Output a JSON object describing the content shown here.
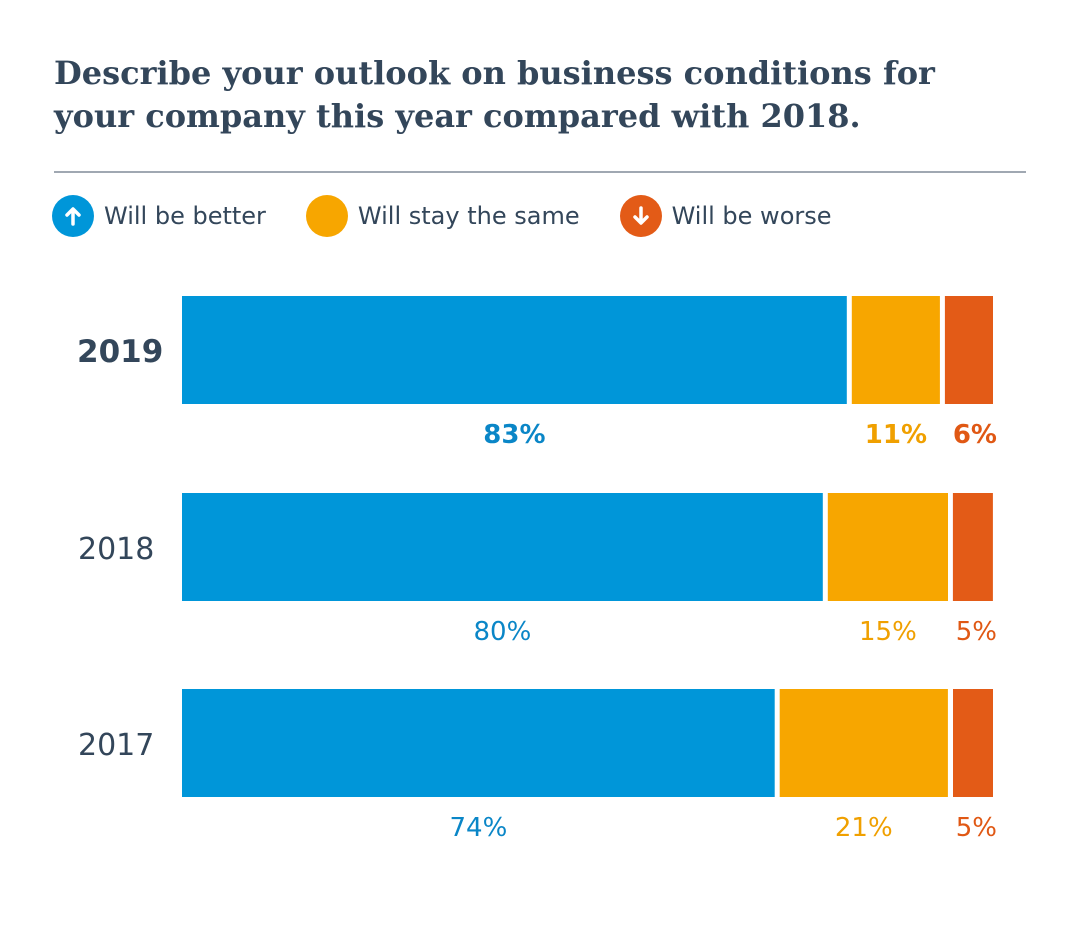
{
  "chart_data": {
    "type": "bar",
    "orientation": "horizontal-stacked",
    "title": "Describe your outlook on business conditions for your company this year compared with 2018.",
    "categories": [
      "2019",
      "2018",
      "2017"
    ],
    "series": [
      {
        "name": "Will be better",
        "color": "#0096d9",
        "label_color": "#0a86c7",
        "icon": "arrow-up-icon",
        "values": [
          83,
          80,
          74
        ],
        "labels": [
          "83%",
          "80%",
          "74%"
        ]
      },
      {
        "name": "Will stay the same",
        "color": "#f7a600",
        "label_color": "#f0a000",
        "icon": "none",
        "values": [
          11,
          15,
          21
        ],
        "labels": [
          "11%",
          "15%",
          "21%"
        ]
      },
      {
        "name": "Will be worse",
        "color": "#e35b17",
        "label_color": "#e05814",
        "icon": "arrow-down-icon",
        "values": [
          6,
          5,
          5
        ],
        "labels": [
          "6%",
          "5%",
          "5%"
        ]
      }
    ],
    "highlight_category": "2019",
    "xlim": [
      0,
      100
    ],
    "xlabel": "",
    "ylabel": "",
    "grid": false,
    "legend_position": "top-left"
  },
  "colors": {
    "text": "#33465a",
    "divider": "#a0a8b2"
  }
}
